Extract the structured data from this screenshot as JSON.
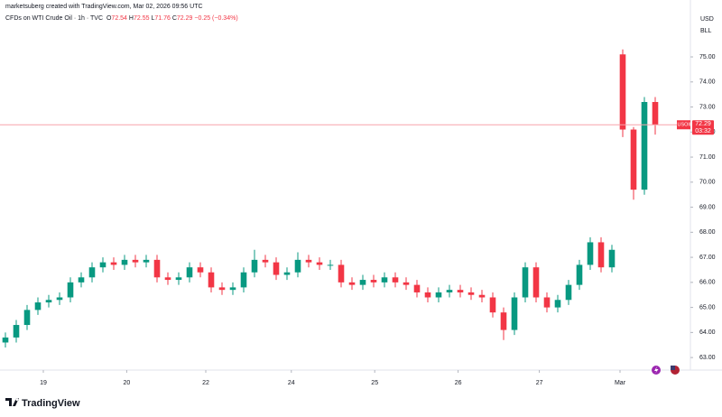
{
  "header": {
    "credit": "marketsuberg created with TradingView.com, Mar 02, 2026 09:56 UTC",
    "symbol": "CFDs on WTI Crude Oil · 1h · TVC",
    "ohlc": {
      "open_label": "O",
      "open": 72.54,
      "high_label": "H",
      "high": 72.55,
      "low_label": "L",
      "low": 71.76,
      "close_label": "C",
      "close": 72.29,
      "change": "−0.25 (−0.34%)"
    }
  },
  "axis_units": {
    "currency": "USD",
    "unit": "BLL"
  },
  "price_tag": {
    "symbol": "USOIL",
    "last_price": 72.29,
    "countdown": "03:32"
  },
  "footer": {
    "logo": "TradingView"
  },
  "chart_data": {
    "type": "candlestick",
    "up_color": "#089981",
    "down_color": "#f23645",
    "price_line_color": "#f7a4ab",
    "x": [
      0,
      1,
      2,
      3,
      4,
      5,
      6,
      7,
      8,
      9,
      10,
      11,
      12,
      13,
      14,
      15,
      16,
      17,
      18,
      19,
      20,
      21,
      22,
      23,
      24,
      25,
      26,
      27,
      28,
      29,
      30,
      31,
      32,
      33,
      34,
      35,
      36,
      37,
      38,
      39,
      40,
      41,
      42,
      43,
      44,
      45,
      46,
      47,
      48,
      49,
      50,
      51,
      52,
      53,
      54,
      55,
      56,
      57,
      58,
      59,
      60
    ],
    "open": [
      63.6,
      63.8,
      64.3,
      64.9,
      65.2,
      65.3,
      65.4,
      66.0,
      66.2,
      66.6,
      66.8,
      66.7,
      66.9,
      66.8,
      66.9,
      66.2,
      66.1,
      66.2,
      66.6,
      66.4,
      65.8,
      65.7,
      65.8,
      66.4,
      66.9,
      66.8,
      66.3,
      66.4,
      66.9,
      66.8,
      66.7,
      66.7,
      66.0,
      65.9,
      66.1,
      66.0,
      66.2,
      66.0,
      65.9,
      65.6,
      65.4,
      65.6,
      65.7,
      65.6,
      65.5,
      65.4,
      64.8,
      64.1,
      65.4,
      66.6,
      65.4,
      65.0,
      65.3,
      65.9,
      66.7,
      67.6,
      66.6,
      75.1,
      72.1,
      69.7,
      73.2
    ],
    "high": [
      64.0,
      64.5,
      65.1,
      65.4,
      65.5,
      65.6,
      66.2,
      66.4,
      66.8,
      67.0,
      67.0,
      67.1,
      67.1,
      67.1,
      67.1,
      66.4,
      66.4,
      66.8,
      66.8,
      66.6,
      66.0,
      66.0,
      66.6,
      67.3,
      67.1,
      67.0,
      66.6,
      67.2,
      67.1,
      67.0,
      66.9,
      66.9,
      66.2,
      66.3,
      66.3,
      66.4,
      66.4,
      66.2,
      66.1,
      65.8,
      65.8,
      65.9,
      65.9,
      65.8,
      65.7,
      65.6,
      65.0,
      65.6,
      66.8,
      66.8,
      65.6,
      65.5,
      66.1,
      66.9,
      67.8,
      67.8,
      67.5,
      75.3,
      72.2,
      73.4,
      73.4
    ],
    "low": [
      63.4,
      63.6,
      64.1,
      64.7,
      65.0,
      65.1,
      65.2,
      65.8,
      66.0,
      66.4,
      66.5,
      66.5,
      66.6,
      66.6,
      66.0,
      65.9,
      65.9,
      66.0,
      66.2,
      65.6,
      65.5,
      65.5,
      65.6,
      66.2,
      66.6,
      66.1,
      66.1,
      66.2,
      66.6,
      66.5,
      66.5,
      65.8,
      65.7,
      65.7,
      65.8,
      65.8,
      65.8,
      65.7,
      65.4,
      65.2,
      65.2,
      65.4,
      65.4,
      65.3,
      65.2,
      64.6,
      63.7,
      63.9,
      65.2,
      65.2,
      64.8,
      64.8,
      65.1,
      65.7,
      66.5,
      66.4,
      66.4,
      71.8,
      69.3,
      69.5,
      71.9
    ],
    "close": [
      63.8,
      64.3,
      64.9,
      65.2,
      65.3,
      65.4,
      66.0,
      66.2,
      66.6,
      66.8,
      66.7,
      66.9,
      66.8,
      66.9,
      66.2,
      66.1,
      66.2,
      66.6,
      66.4,
      65.8,
      65.7,
      65.8,
      66.4,
      66.9,
      66.8,
      66.3,
      66.4,
      66.9,
      66.8,
      66.7,
      66.7,
      66.0,
      65.9,
      66.1,
      66.0,
      66.2,
      66.0,
      65.9,
      65.6,
      65.4,
      65.6,
      65.7,
      65.6,
      65.5,
      65.4,
      64.8,
      64.1,
      65.4,
      66.6,
      65.4,
      65.0,
      65.3,
      65.9,
      66.7,
      67.6,
      66.6,
      67.3,
      72.1,
      69.7,
      73.2,
      72.29
    ],
    "xlim": [
      -0.5,
      63.25
    ],
    "xticks": [
      {
        "value": 3.5,
        "label": "19"
      },
      {
        "value": 11.2,
        "label": "20"
      },
      {
        "value": 18.5,
        "label": "22"
      },
      {
        "value": 26.4,
        "label": "24"
      },
      {
        "value": 34.1,
        "label": "25"
      },
      {
        "value": 41.8,
        "label": "26"
      },
      {
        "value": 49.3,
        "label": "27"
      },
      {
        "value": 56.75,
        "label": "Mar"
      }
    ],
    "ylim": [
      62.5,
      76.37
    ],
    "yticks": [
      {
        "value": 63,
        "label": "63.00"
      },
      {
        "value": 64,
        "label": "64.00"
      },
      {
        "value": 65,
        "label": "65.00"
      },
      {
        "value": 66,
        "label": "66.00"
      },
      {
        "value": 67,
        "label": "67.00"
      },
      {
        "value": 68,
        "label": "68.00"
      },
      {
        "value": 69,
        "label": "69.00"
      },
      {
        "value": 70,
        "label": "70.00"
      },
      {
        "value": 71,
        "label": "71.00"
      },
      {
        "value": 72,
        "label": "72.00"
      },
      {
        "value": 73,
        "label": "73.00"
      },
      {
        "value": 74,
        "label": "74.00"
      },
      {
        "value": 75,
        "label": "75.00"
      }
    ]
  }
}
